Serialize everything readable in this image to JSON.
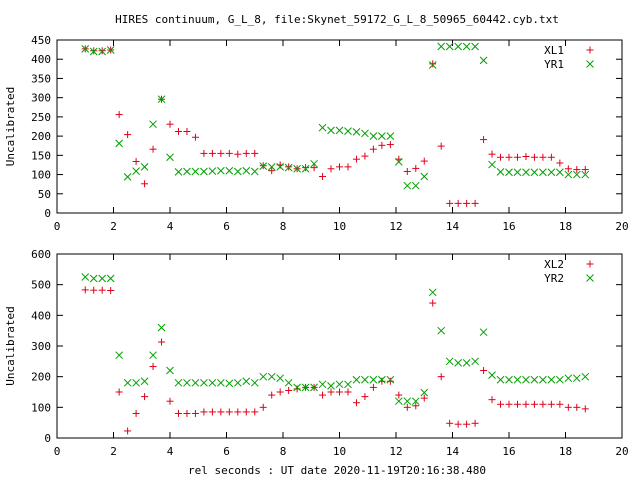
{
  "page": {
    "title": "HIRES continuum, G_L_8, file:Skynet_59172_G_L_8_50965_60442.cyb.txt",
    "xlabel": "rel seconds : UT date 2020-11-19T20:16:38.480"
  },
  "chart_data": [
    {
      "type": "scatter",
      "ylabel": "Uncalibrated",
      "xlim": [
        0,
        20
      ],
      "ylim": [
        0,
        450
      ],
      "xticks": [
        0,
        2,
        4,
        6,
        8,
        10,
        12,
        14,
        16,
        18,
        20
      ],
      "yticks": [
        0,
        50,
        100,
        150,
        200,
        250,
        300,
        350,
        400,
        450
      ],
      "legend_position": "top-right",
      "series": [
        {
          "name": "XL1",
          "marker": "plus",
          "color": "#e0001a",
          "x": [
            1.0,
            1.3,
            1.6,
            1.9,
            2.2,
            2.5,
            2.8,
            3.1,
            3.4,
            3.7,
            4.0,
            4.3,
            4.6,
            4.9,
            5.2,
            5.5,
            5.8,
            6.1,
            6.4,
            6.7,
            7.0,
            7.3,
            7.6,
            7.9,
            8.2,
            8.5,
            8.8,
            9.1,
            9.4,
            9.7,
            10.0,
            10.3,
            10.6,
            10.9,
            11.2,
            11.5,
            11.8,
            12.1,
            12.4,
            12.7,
            13.0,
            13.3,
            13.6,
            13.9,
            14.2,
            14.5,
            14.8,
            15.1,
            15.4,
            15.7,
            16.0,
            16.3,
            16.6,
            16.9,
            17.2,
            17.5,
            17.8,
            18.1,
            18.4,
            18.7
          ],
          "y": [
            427,
            422,
            422,
            424,
            256,
            204,
            134,
            76,
            166,
            296,
            231,
            212,
            212,
            197,
            155,
            155,
            155,
            155,
            153,
            155,
            155,
            123,
            110,
            125,
            120,
            115,
            118,
            118,
            95,
            115,
            120,
            120,
            140,
            148,
            166,
            176,
            178,
            140,
            108,
            116,
            135,
            388,
            174,
            25,
            25,
            25,
            25,
            191,
            153,
            145,
            145,
            145,
            147,
            145,
            145,
            145,
            130,
            115,
            113,
            113
          ]
        },
        {
          "name": "YR1",
          "marker": "cross",
          "color": "#00a000",
          "x": [
            1.0,
            1.3,
            1.6,
            1.9,
            2.2,
            2.5,
            2.8,
            3.1,
            3.4,
            3.7,
            4.0,
            4.3,
            4.6,
            4.9,
            5.2,
            5.5,
            5.8,
            6.1,
            6.4,
            6.7,
            7.0,
            7.3,
            7.6,
            7.9,
            8.2,
            8.5,
            8.8,
            9.1,
            9.4,
            9.7,
            10.0,
            10.3,
            10.6,
            10.9,
            11.2,
            11.5,
            11.8,
            12.1,
            12.4,
            12.7,
            13.0,
            13.3,
            13.6,
            13.9,
            14.2,
            14.5,
            14.8,
            15.1,
            15.4,
            15.7,
            16.0,
            16.3,
            16.6,
            16.9,
            17.2,
            17.5,
            17.8,
            18.1,
            18.4,
            18.7
          ],
          "y": [
            427,
            420,
            420,
            424,
            181,
            94,
            109,
            120,
            231,
            296,
            145,
            107,
            108,
            108,
            108,
            109,
            110,
            110,
            108,
            110,
            108,
            122,
            120,
            120,
            118,
            115,
            115,
            128,
            222,
            215,
            215,
            213,
            211,
            207,
            200,
            200,
            200,
            133,
            71,
            71,
            95,
            385,
            433,
            433,
            433,
            433,
            433,
            397,
            126,
            107,
            106,
            106,
            106,
            106,
            106,
            106,
            106,
            100,
            100,
            100
          ]
        }
      ]
    },
    {
      "type": "scatter",
      "ylabel": "Uncalibrated",
      "xlim": [
        0,
        20
      ],
      "ylim": [
        0,
        600
      ],
      "xticks": [
        0,
        2,
        4,
        6,
        8,
        10,
        12,
        14,
        16,
        18,
        20
      ],
      "yticks": [
        0,
        100,
        200,
        300,
        400,
        500,
        600
      ],
      "legend_position": "top-right",
      "series": [
        {
          "name": "XL2",
          "marker": "plus",
          "color": "#e0001a",
          "x": [
            1.0,
            1.3,
            1.6,
            1.9,
            2.2,
            2.5,
            2.8,
            3.1,
            3.4,
            3.7,
            4.0,
            4.3,
            4.6,
            4.9,
            5.2,
            5.5,
            5.8,
            6.1,
            6.4,
            6.7,
            7.0,
            7.3,
            7.6,
            7.9,
            8.2,
            8.5,
            8.8,
            9.1,
            9.4,
            9.7,
            10.0,
            10.3,
            10.6,
            10.9,
            11.2,
            11.5,
            11.8,
            12.1,
            12.4,
            12.7,
            13.0,
            13.3,
            13.6,
            13.9,
            14.2,
            14.5,
            14.8,
            15.1,
            15.4,
            15.7,
            16.0,
            16.3,
            16.6,
            16.9,
            17.2,
            17.5,
            17.8,
            18.1,
            18.4,
            18.7
          ],
          "y": [
            483,
            482,
            482,
            481,
            150,
            23,
            80,
            135,
            233,
            313,
            120,
            80,
            80,
            80,
            85,
            85,
            85,
            85,
            85,
            85,
            85,
            100,
            140,
            150,
            155,
            160,
            165,
            165,
            140,
            150,
            150,
            150,
            115,
            135,
            165,
            185,
            185,
            140,
            100,
            105,
            130,
            440,
            200,
            48,
            45,
            45,
            48,
            220,
            125,
            110,
            110,
            110,
            110,
            110,
            110,
            110,
            110,
            100,
            100,
            95
          ]
        },
        {
          "name": "YR2",
          "marker": "cross",
          "color": "#00a000",
          "x": [
            1.0,
            1.3,
            1.6,
            1.9,
            2.2,
            2.5,
            2.8,
            3.1,
            3.4,
            3.7,
            4.0,
            4.3,
            4.6,
            4.9,
            5.2,
            5.5,
            5.8,
            6.1,
            6.4,
            6.7,
            7.0,
            7.3,
            7.6,
            7.9,
            8.2,
            8.5,
            8.8,
            9.1,
            9.4,
            9.7,
            10.0,
            10.3,
            10.6,
            10.9,
            11.2,
            11.5,
            11.8,
            12.1,
            12.4,
            12.7,
            13.0,
            13.3,
            13.6,
            13.9,
            14.2,
            14.5,
            14.8,
            15.1,
            15.4,
            15.7,
            16.0,
            16.3,
            16.6,
            16.9,
            17.2,
            17.5,
            17.8,
            18.1,
            18.4,
            18.7
          ],
          "y": [
            525,
            520,
            520,
            520,
            270,
            180,
            180,
            185,
            270,
            360,
            220,
            180,
            180,
            180,
            180,
            180,
            180,
            178,
            180,
            185,
            180,
            200,
            200,
            195,
            180,
            165,
            165,
            165,
            175,
            170,
            175,
            175,
            190,
            190,
            190,
            190,
            190,
            120,
            120,
            120,
            148,
            475,
            350,
            250,
            245,
            245,
            250,
            345,
            205,
            190,
            190,
            190,
            190,
            190,
            190,
            190,
            190,
            195,
            195,
            200
          ]
        }
      ]
    }
  ]
}
